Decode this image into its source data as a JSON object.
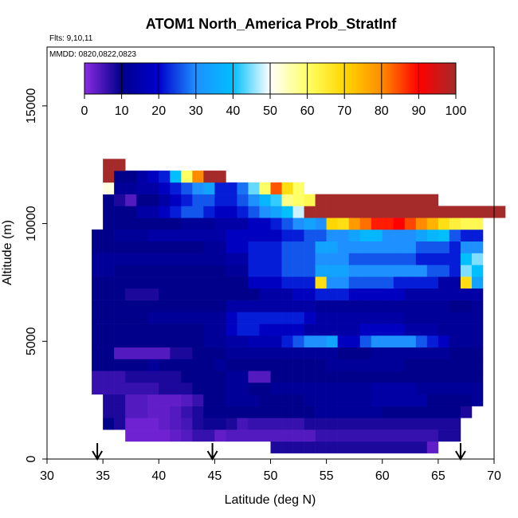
{
  "chart_data": {
    "type": "heatmap",
    "title": "ATOM1 North_America Prob_StratInf",
    "subtitle": "Flts: 9,10,11",
    "annotation": "MMDD: 0820,0822,0823",
    "xlabel": "Latitude (deg N)",
    "ylabel": "Altitude (m)",
    "xlim": [
      30,
      70
    ],
    "ylim": [
      0,
      17500
    ],
    "x_ticks": [
      "30",
      "35",
      "40",
      "45",
      "50",
      "55",
      "60",
      "65",
      "70"
    ],
    "y_ticks": [
      "0",
      "5000",
      "10000",
      "15000"
    ],
    "colorbar": {
      "range": [
        0,
        100
      ],
      "ticks": [
        "0",
        "10",
        "20",
        "30",
        "40",
        "50",
        "60",
        "70",
        "80",
        "90",
        "100"
      ],
      "colors": [
        "#8a2be2",
        "#00008b",
        "#0000cd",
        "#1e90ff",
        "#00bfff",
        "#ffffff",
        "#ffff66",
        "#ffd700",
        "#ff8c00",
        "#ff0000",
        "#a52a2a"
      ]
    },
    "arrow_latitudes": [
      34.5,
      44.8,
      67.0
    ],
    "bin_width_deg": 1,
    "bin_height_m": 500,
    "rows": [
      {
        "alt": 500,
        "lat_start": 50,
        "values": [
          8,
          8,
          8,
          8,
          8,
          8,
          8,
          8,
          8,
          8,
          8,
          8,
          8,
          8,
          3
        ]
      },
      {
        "alt": 1000,
        "lat_start": 37,
        "values": [
          2,
          2,
          2,
          2,
          3,
          4,
          6,
          6,
          3,
          4,
          4,
          4,
          4,
          4,
          4,
          4,
          4,
          6,
          6,
          6,
          6,
          6,
          6,
          6,
          6,
          6,
          6,
          6,
          8,
          8
        ]
      },
      {
        "alt": 1500,
        "lat_start": 35,
        "values": [
          10,
          8,
          2,
          2,
          2,
          3,
          4,
          5,
          8,
          9,
          9,
          8,
          5,
          6,
          6,
          6,
          6,
          6,
          8,
          8,
          8,
          8,
          8,
          8,
          8,
          8,
          8,
          8,
          8,
          8,
          8,
          8
        ]
      },
      {
        "alt": 2000,
        "lat_start": 35,
        "values": [
          8,
          8,
          4,
          4,
          3,
          3,
          4,
          6,
          8,
          10,
          10,
          10,
          10,
          10,
          10,
          10,
          10,
          10,
          10,
          12,
          12,
          12,
          12,
          12,
          12,
          10,
          10,
          10,
          10,
          10,
          10,
          10,
          8
        ]
      },
      {
        "alt": 2500,
        "lat_start": 35,
        "values": [
          8,
          8,
          4,
          4,
          3,
          3,
          3,
          4,
          6,
          10,
          10,
          12,
          12,
          12,
          10,
          10,
          10,
          10,
          12,
          12,
          12,
          12,
          12,
          12,
          14,
          14,
          14,
          14,
          14,
          10,
          10,
          10,
          10,
          12
        ]
      },
      {
        "alt": 3000,
        "lat_start": 34,
        "values": [
          6,
          6,
          6,
          6,
          6,
          6,
          8,
          8,
          8,
          10,
          10,
          10,
          12,
          12,
          10,
          10,
          12,
          12,
          12,
          12,
          12,
          12,
          12,
          12,
          12,
          14,
          14,
          14,
          14,
          12,
          12,
          12,
          12,
          12,
          12
        ]
      },
      {
        "alt": 3500,
        "lat_start": 34,
        "values": [
          6,
          6,
          6,
          8,
          8,
          8,
          8,
          8,
          10,
          10,
          10,
          10,
          12,
          12,
          4,
          4,
          10,
          10,
          10,
          10,
          10,
          10,
          10,
          10,
          10,
          10,
          10,
          10,
          10,
          10,
          10,
          10,
          10,
          10,
          10
        ]
      },
      {
        "alt": 4000,
        "lat_start": 34,
        "values": [
          10,
          10,
          10,
          10,
          10,
          12,
          10,
          10,
          10,
          10,
          10,
          12,
          10,
          10,
          10,
          10,
          10,
          10,
          10,
          10,
          10,
          12,
          12,
          12,
          12,
          12,
          12,
          12,
          10,
          10,
          10,
          10,
          10,
          10,
          10
        ]
      },
      {
        "alt": 4500,
        "lat_start": 34,
        "values": [
          10,
          10,
          4,
          4,
          4,
          4,
          4,
          8,
          8,
          10,
          10,
          10,
          12,
          12,
          12,
          12,
          12,
          12,
          12,
          12,
          12,
          12,
          10,
          10,
          10,
          12,
          12,
          12,
          12,
          12,
          12,
          12,
          10,
          10,
          10
        ]
      },
      {
        "alt": 5000,
        "lat_start": 34,
        "values": [
          10,
          10,
          10,
          10,
          10,
          10,
          10,
          10,
          10,
          10,
          12,
          12,
          14,
          14,
          16,
          16,
          16,
          22,
          26,
          30,
          30,
          34,
          18,
          18,
          26,
          30,
          30,
          30,
          30,
          26,
          22,
          18,
          12,
          12,
          12
        ]
      },
      {
        "alt": 5500,
        "lat_start": 34,
        "values": [
          10,
          10,
          10,
          10,
          10,
          10,
          10,
          10,
          10,
          10,
          12,
          12,
          18,
          22,
          22,
          18,
          18,
          18,
          18,
          14,
          14,
          14,
          14,
          14,
          18,
          18,
          18,
          18,
          14,
          14,
          14,
          12,
          12,
          12,
          12
        ]
      },
      {
        "alt": 6000,
        "lat_start": 34,
        "values": [
          10,
          10,
          10,
          10,
          10,
          12,
          12,
          12,
          12,
          12,
          12,
          12,
          18,
          22,
          22,
          22,
          22,
          22,
          22,
          18,
          14,
          14,
          14,
          14,
          14,
          14,
          14,
          14,
          12,
          12,
          12,
          12,
          12,
          12,
          12
        ]
      },
      {
        "alt": 6500,
        "lat_start": 34,
        "values": [
          10,
          10,
          10,
          10,
          10,
          10,
          10,
          10,
          10,
          10,
          10,
          10,
          14,
          14,
          14,
          14,
          14,
          14,
          14,
          14,
          12,
          12,
          12,
          12,
          12,
          12,
          12,
          12,
          12,
          12,
          12,
          12,
          10,
          10,
          12
        ]
      },
      {
        "alt": 7000,
        "lat_start": 34,
        "values": [
          10,
          10,
          10,
          8,
          8,
          8,
          10,
          10,
          10,
          10,
          10,
          10,
          10,
          10,
          10,
          14,
          14,
          14,
          18,
          18,
          22,
          22,
          22,
          18,
          18,
          18,
          18,
          18,
          14,
          14,
          14,
          14,
          14,
          14,
          14
        ]
      },
      {
        "alt": 7500,
        "lat_start": 34,
        "values": [
          10,
          10,
          10,
          10,
          10,
          10,
          10,
          10,
          10,
          10,
          10,
          10,
          10,
          10,
          18,
          18,
          18,
          22,
          22,
          22,
          68,
          30,
          30,
          26,
          26,
          26,
          26,
          22,
          22,
          22,
          22,
          14,
          14,
          68,
          34
        ]
      },
      {
        "alt": 8000,
        "lat_start": 34,
        "values": [
          12,
          12,
          10,
          10,
          10,
          10,
          10,
          10,
          10,
          10,
          10,
          10,
          12,
          12,
          22,
          22,
          22,
          26,
          26,
          26,
          34,
          34,
          34,
          30,
          30,
          30,
          30,
          30,
          30,
          30,
          26,
          26,
          22,
          45,
          40
        ]
      },
      {
        "alt": 8500,
        "lat_start": 34,
        "values": [
          12,
          12,
          12,
          12,
          12,
          12,
          12,
          12,
          12,
          12,
          12,
          12,
          14,
          14,
          22,
          22,
          22,
          26,
          26,
          26,
          30,
          30,
          30,
          26,
          26,
          26,
          26,
          26,
          26,
          22,
          22,
          22,
          22,
          40,
          45
        ]
      },
      {
        "alt": 9000,
        "lat_start": 34,
        "values": [
          10,
          10,
          10,
          10,
          10,
          10,
          10,
          10,
          10,
          10,
          12,
          12,
          18,
          18,
          22,
          22,
          22,
          26,
          26,
          26,
          34,
          34,
          30,
          30,
          30,
          30,
          30,
          30,
          30,
          26,
          26,
          26,
          22,
          30,
          30
        ]
      },
      {
        "alt": 9500,
        "lat_start": 34,
        "values": [
          10,
          10,
          12,
          12,
          12,
          14,
          14,
          14,
          14,
          14,
          14,
          14,
          18,
          18,
          18,
          18,
          18,
          22,
          22,
          26,
          26,
          30,
          30,
          34,
          38,
          38,
          30,
          30,
          30,
          34,
          38,
          40,
          26,
          22,
          22
        ]
      },
      {
        "alt": 10000,
        "lat_start": 35,
        "values": [
          10,
          10,
          10,
          10,
          10,
          10,
          10,
          12,
          12,
          12,
          14,
          14,
          14,
          18,
          18,
          22,
          26,
          30,
          34,
          30,
          70,
          68,
          78,
          82,
          88,
          88,
          90,
          85,
          80,
          75,
          68,
          64,
          62,
          62
        ]
      },
      {
        "alt": 10500,
        "lat_start": 35,
        "values": [
          10,
          10,
          10,
          14,
          14,
          18,
          22,
          26,
          26,
          22,
          18,
          18,
          22,
          26,
          30,
          34,
          40,
          48,
          100,
          100,
          100,
          100,
          100,
          100,
          100,
          100,
          100,
          100,
          100,
          100,
          100,
          100,
          100,
          100,
          100,
          100
        ]
      },
      {
        "alt": 11000,
        "lat_start": 35,
        "values": [
          10,
          8,
          4,
          10,
          10,
          14,
          18,
          22,
          26,
          26,
          22,
          22,
          26,
          30,
          38,
          42,
          58,
          60,
          62,
          100,
          100,
          100,
          100,
          100,
          100,
          100,
          100,
          100,
          100,
          100
        ]
      },
      {
        "alt": 11500,
        "lat_start": 35,
        "values": [
          52,
          12,
          12,
          14,
          14,
          18,
          22,
          26,
          30,
          34,
          22,
          22,
          28,
          44,
          60,
          84,
          68,
          60
        ]
      },
      {
        "alt": 12000,
        "lat_start": 35,
        "values": [
          100,
          10,
          10,
          14,
          18,
          22,
          40,
          60,
          80,
          100,
          100
        ]
      },
      {
        "alt": 12500,
        "lat_start": 35,
        "values": [
          100,
          100
        ]
      }
    ]
  }
}
